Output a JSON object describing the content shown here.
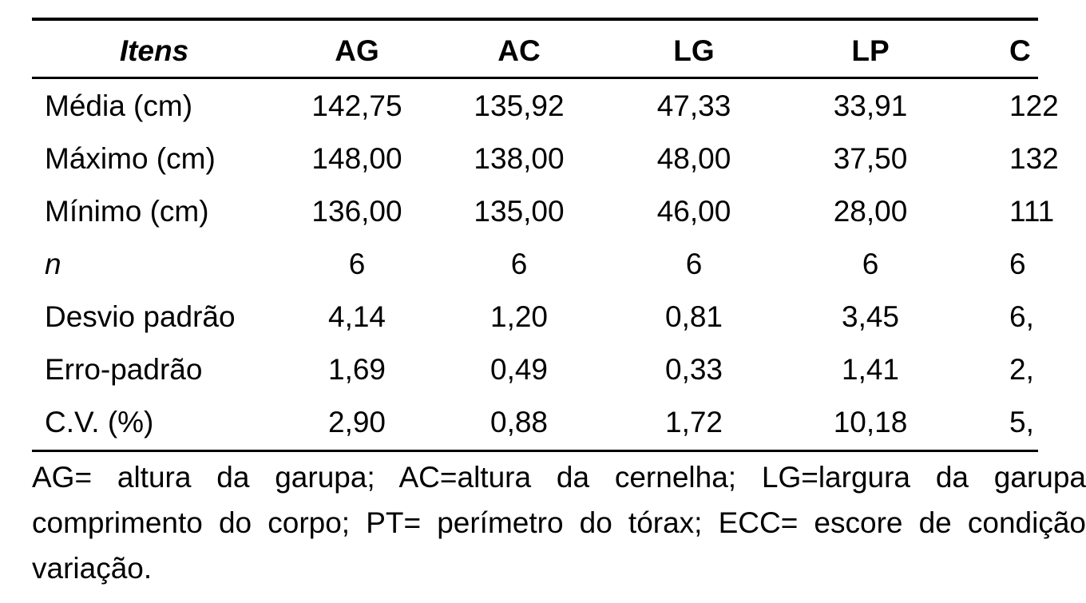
{
  "table": {
    "headers": [
      "Itens",
      "AG",
      "AC",
      "LG",
      "LP",
      "C"
    ],
    "rows": [
      [
        "Média (cm)",
        "142,75",
        "135,92",
        "47,33",
        "33,91",
        "122"
      ],
      [
        "Máximo (cm)",
        "148,00",
        "138,00",
        "48,00",
        "37,50",
        "132"
      ],
      [
        "Mínimo (cm)",
        "136,00",
        "135,00",
        "46,00",
        "28,00",
        "111"
      ],
      [
        "n",
        "6",
        "6",
        "6",
        "6",
        "6"
      ],
      [
        "Desvio padrão",
        "4,14",
        "1,20",
        "0,81",
        "3,45",
        "6,"
      ],
      [
        "Erro-padrão",
        "1,69",
        "0,49",
        "0,33",
        "1,41",
        "2,"
      ],
      [
        "C.V. (%)",
        "2,90",
        "0,88",
        "1,72",
        "10,18",
        "5,"
      ]
    ]
  },
  "caption": {
    "lines": [
      "AG= altura da garupa; AC=altura da cernelha; LG=largura da garupa",
      "comprimento do corpo; PT= perímetro do tórax; ECC= escore de condição",
      "variação."
    ]
  }
}
